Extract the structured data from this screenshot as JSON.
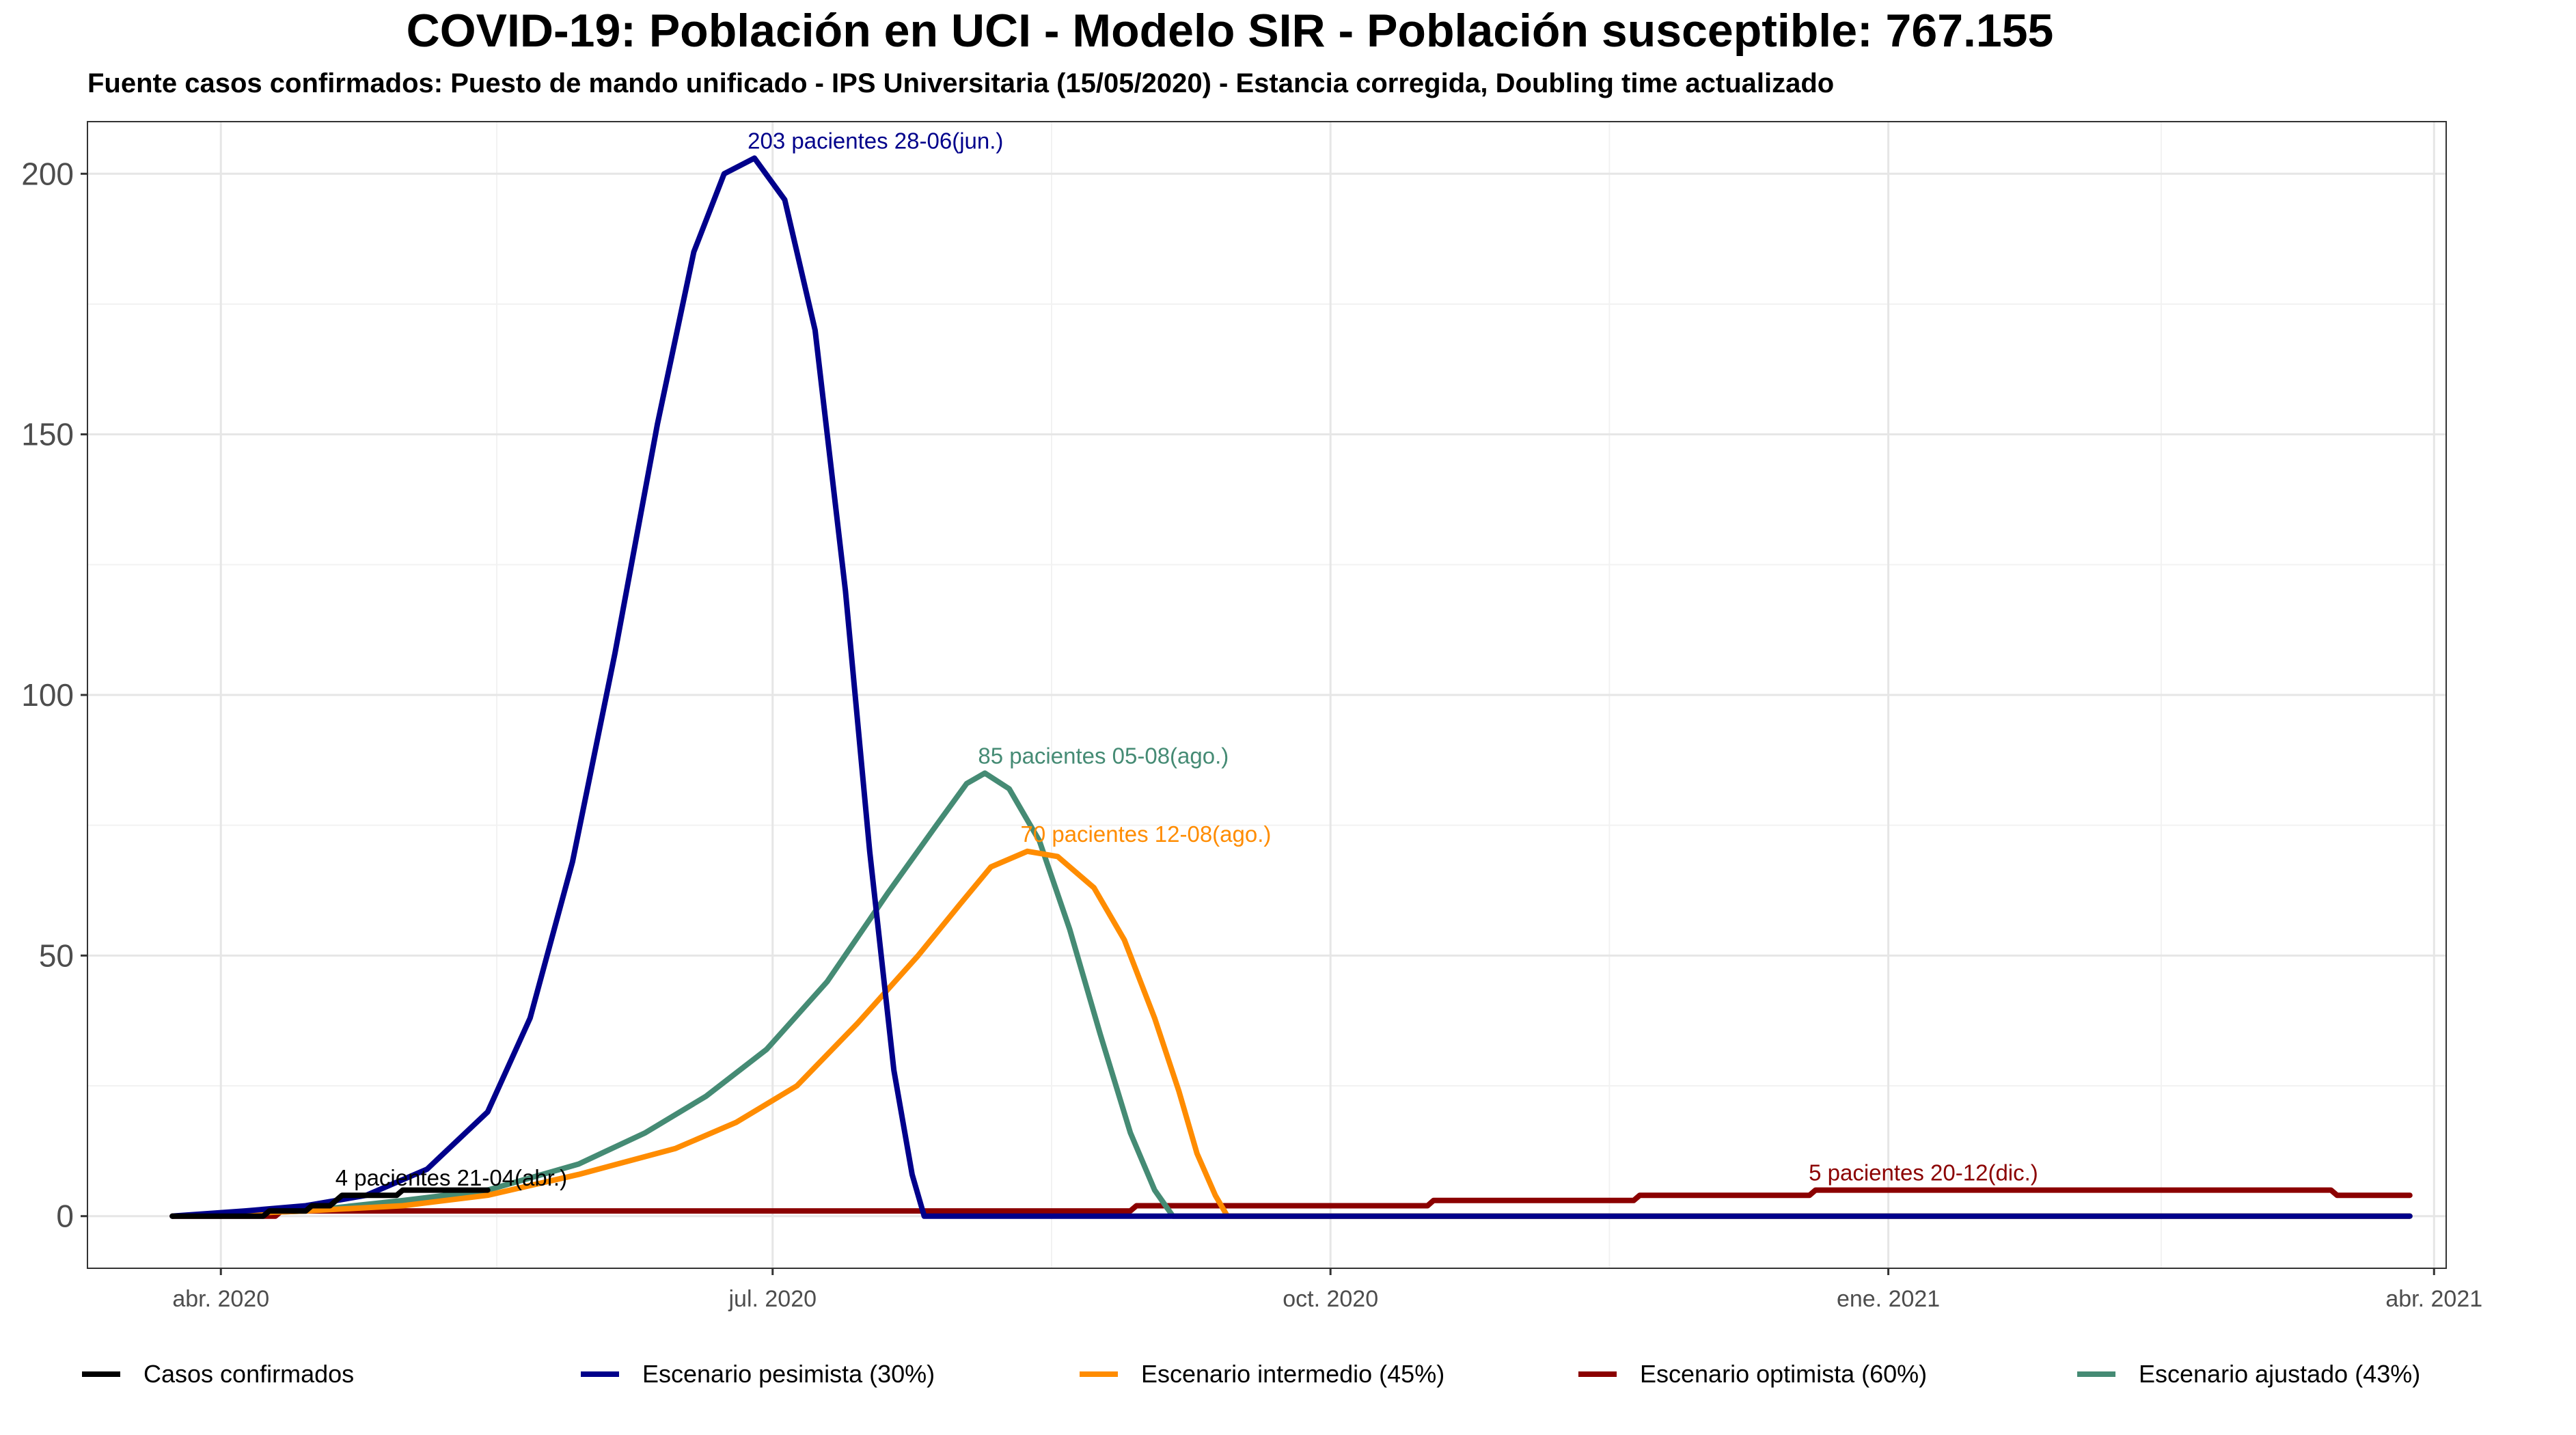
{
  "title": "COVID-19: Población en UCI - Modelo SIR - Población susceptible: 767.155",
  "subtitle": "Fuente casos confirmados: Puesto de mando unificado - IPS Universitaria (15/05/2020) - Estancia corregida, Doubling time actualizado",
  "chart_data": {
    "type": "line",
    "title": "COVID-19: Población en UCI - Modelo SIR - Población susceptible: 767.155",
    "xlabel": "",
    "ylabel": "",
    "xlim": [
      "2020-03-10",
      "2021-04-03"
    ],
    "ylim": [
      -10,
      210
    ],
    "x_ticks": [
      {
        "date": "2020-04-01",
        "label": "abr. 2020"
      },
      {
        "date": "2020-07-01",
        "label": "jul. 2020"
      },
      {
        "date": "2020-10-01",
        "label": "oct. 2020"
      },
      {
        "date": "2021-01-01",
        "label": "ene. 2021"
      },
      {
        "date": "2021-04-01",
        "label": "abr. 2021"
      }
    ],
    "y_ticks": [
      0,
      50,
      100,
      150,
      200
    ],
    "grid": true,
    "legend_position": "bottom",
    "series": [
      {
        "name": "Casos confirmados",
        "color": "#000000",
        "points": [
          [
            "2020-03-24",
            0
          ],
          [
            "2020-04-08",
            0
          ],
          [
            "2020-04-09",
            1
          ],
          [
            "2020-04-15",
            1
          ],
          [
            "2020-04-16",
            2
          ],
          [
            "2020-04-19",
            2
          ],
          [
            "2020-04-20",
            3
          ],
          [
            "2020-04-21",
            4
          ],
          [
            "2020-04-30",
            4
          ],
          [
            "2020-05-01",
            5
          ],
          [
            "2020-05-15",
            5
          ]
        ]
      },
      {
        "name": "Escenario pesimista (30%)",
        "color": "#00008B",
        "points": [
          [
            "2020-03-24",
            0
          ],
          [
            "2020-04-05",
            1
          ],
          [
            "2020-04-15",
            2
          ],
          [
            "2020-04-25",
            4
          ],
          [
            "2020-05-05",
            9
          ],
          [
            "2020-05-15",
            20
          ],
          [
            "2020-05-22",
            38
          ],
          [
            "2020-05-29",
            68
          ],
          [
            "2020-06-05",
            108
          ],
          [
            "2020-06-12",
            152
          ],
          [
            "2020-06-18",
            185
          ],
          [
            "2020-06-23",
            200
          ],
          [
            "2020-06-28",
            203
          ],
          [
            "2020-07-03",
            195
          ],
          [
            "2020-07-08",
            170
          ],
          [
            "2020-07-13",
            120
          ],
          [
            "2020-07-17",
            70
          ],
          [
            "2020-07-21",
            28
          ],
          [
            "2020-07-24",
            8
          ],
          [
            "2020-07-26",
            0
          ],
          [
            "2021-03-28",
            0
          ]
        ]
      },
      {
        "name": "Escenario intermedio (45%)",
        "color": "#FF8C00",
        "points": [
          [
            "2020-03-24",
            0
          ],
          [
            "2020-04-15",
            1
          ],
          [
            "2020-05-01",
            2
          ],
          [
            "2020-05-15",
            4
          ],
          [
            "2020-05-30",
            8
          ],
          [
            "2020-06-15",
            13
          ],
          [
            "2020-06-25",
            18
          ],
          [
            "2020-07-05",
            25
          ],
          [
            "2020-07-15",
            37
          ],
          [
            "2020-07-25",
            50
          ],
          [
            "2020-08-01",
            60
          ],
          [
            "2020-08-06",
            67
          ],
          [
            "2020-08-12",
            70
          ],
          [
            "2020-08-17",
            69
          ],
          [
            "2020-08-23",
            63
          ],
          [
            "2020-08-28",
            53
          ],
          [
            "2020-09-02",
            38
          ],
          [
            "2020-09-06",
            24
          ],
          [
            "2020-09-09",
            12
          ],
          [
            "2020-09-12",
            4
          ],
          [
            "2020-09-14",
            0
          ],
          [
            "2021-03-28",
            0
          ]
        ]
      },
      {
        "name": "Escenario optimista (60%)",
        "color": "#8B0000",
        "points": [
          [
            "2020-03-24",
            0
          ],
          [
            "2020-04-10",
            0
          ],
          [
            "2020-04-11",
            1
          ],
          [
            "2020-08-29",
            1
          ],
          [
            "2020-08-30",
            2
          ],
          [
            "2020-10-17",
            2
          ],
          [
            "2020-10-18",
            3
          ],
          [
            "2020-11-20",
            3
          ],
          [
            "2020-11-21",
            4
          ],
          [
            "2020-12-19",
            4
          ],
          [
            "2020-12-20",
            5
          ],
          [
            "2021-03-15",
            5
          ],
          [
            "2021-03-16",
            4
          ],
          [
            "2021-03-28",
            4
          ]
        ]
      },
      {
        "name": "Escenario ajustado (43%)",
        "color": "#458B74",
        "points": [
          [
            "2020-03-24",
            0
          ],
          [
            "2020-04-15",
            1
          ],
          [
            "2020-05-01",
            3
          ],
          [
            "2020-05-15",
            5
          ],
          [
            "2020-05-30",
            10
          ],
          [
            "2020-06-10",
            16
          ],
          [
            "2020-06-20",
            23
          ],
          [
            "2020-06-30",
            32
          ],
          [
            "2020-07-10",
            45
          ],
          [
            "2020-07-20",
            62
          ],
          [
            "2020-07-28",
            75
          ],
          [
            "2020-08-02",
            83
          ],
          [
            "2020-08-05",
            85
          ],
          [
            "2020-08-09",
            82
          ],
          [
            "2020-08-14",
            72
          ],
          [
            "2020-08-19",
            55
          ],
          [
            "2020-08-24",
            35
          ],
          [
            "2020-08-29",
            16
          ],
          [
            "2020-09-02",
            5
          ],
          [
            "2020-09-05",
            0
          ],
          [
            "2021-03-28",
            0
          ]
        ]
      }
    ],
    "annotations": [
      {
        "text": "4 pacientes 21-04(abr.)",
        "x": "2020-04-21",
        "y": 4,
        "color": "#000000"
      },
      {
        "text": "203 pacientes 28-06(jun.)",
        "x": "2020-06-28",
        "y": 203,
        "color": "#00008B"
      },
      {
        "text": "85 pacientes 05-08(ago.)",
        "x": "2020-08-05",
        "y": 85,
        "color": "#458B74"
      },
      {
        "text": "70 pacientes 12-08(ago.)",
        "x": "2020-08-12",
        "y": 70,
        "color": "#FF8C00"
      },
      {
        "text": "5 pacientes 20-12(dic.)",
        "x": "2020-12-20",
        "y": 5,
        "color": "#8B0000"
      }
    ]
  }
}
